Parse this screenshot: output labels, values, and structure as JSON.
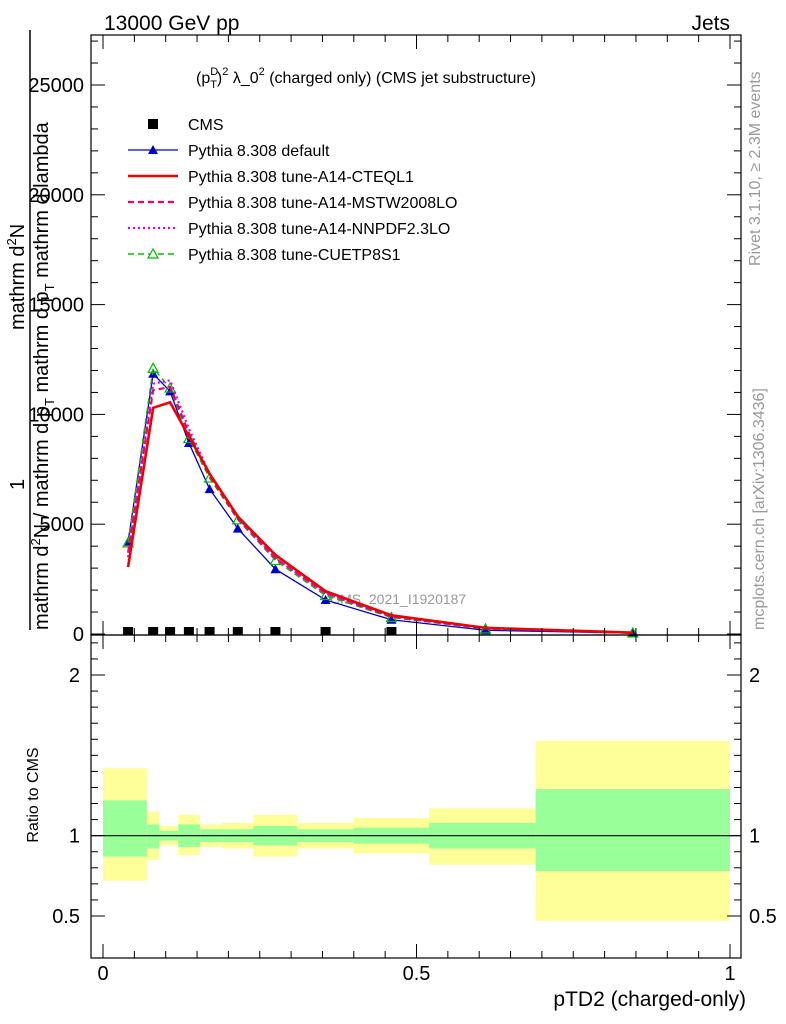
{
  "header": {
    "left": "13000 GeV pp",
    "right": "Jets"
  },
  "side_text": {
    "rivet": "Rivet 3.1.10, ≥ 2.3M events",
    "mcplots": "mcplots.cern.ch [arXiv:1306.3436]"
  },
  "watermark": "CMS_2021_I1920187",
  "colors": {
    "ratio_yellow": "#ffff99",
    "ratio_green": "#99ff99",
    "default": "#0000cc",
    "cteql1": "#ee0000",
    "mstw": "#ee0066",
    "nnpdf": "#dd00dd",
    "cuetp8s1": "#00bb00"
  },
  "chart_data": [
    {
      "type": "line",
      "title": "(p_T^D)^2 λ_0^2 (charged only) (CMS jet substructure)",
      "title_parts": {
        "a": "(p",
        "sup1": "D",
        "sub1": "T",
        "b": ")",
        "sup2": "2",
        "c": " λ_0",
        "sup3": "2",
        "d": " (charged only) (CMS jet substructure)"
      },
      "ylabel_parts": {
        "one": "1",
        "numerator": "mathrm d²N",
        "numerator_a": "mathrm d",
        "numerator_sup": "2",
        "numerator_b": "N",
        "denominator": "mathrm dN / mathrm d p_T mathrm d p_T mathrm d lambda",
        "den_a": "mathrm d",
        "den_b": "N / mathrm d p",
        "den_c": " mathrm d p",
        "den_d": " mathrm d lambda",
        "sub_t": "T"
      },
      "xlim": [
        0,
        1
      ],
      "ylim": [
        0,
        27000
      ],
      "ytick_labels": [
        "0",
        "5000",
        "10000",
        "15000",
        "20000",
        "25000"
      ],
      "legend_position": "top-left",
      "series": [
        {
          "name": "CMS",
          "x": [
            0.04,
            0.08,
            0.107,
            0.137,
            0.17,
            0.215,
            0.275,
            0.355,
            0.46
          ],
          "y": [
            0,
            0,
            0,
            0,
            0,
            0,
            0,
            0,
            0
          ],
          "marker": "square"
        },
        {
          "name": "Pythia 8.308 default",
          "x": [
            0.04,
            0.08,
            0.107,
            0.137,
            0.17,
            0.215,
            0.275,
            0.355,
            0.46,
            0.61,
            0.845
          ],
          "y": [
            4200,
            11850,
            11050,
            8700,
            6600,
            4800,
            2950,
            1550,
            650,
            170,
            40
          ],
          "marker": "triangle"
        },
        {
          "name": "Pythia 8.308 tune-A14-CTEQL1",
          "x": [
            0.04,
            0.08,
            0.107,
            0.137,
            0.17,
            0.215,
            0.275,
            0.355,
            0.46,
            0.61,
            0.845
          ],
          "y": [
            3050,
            10300,
            10550,
            9000,
            7300,
            5350,
            3600,
            1950,
            850,
            280,
            60
          ],
          "marker": "none"
        },
        {
          "name": "Pythia 8.308 tune-A14-MSTW2008LO",
          "x": [
            0.04,
            0.08,
            0.107,
            0.137,
            0.17,
            0.215,
            0.275,
            0.355,
            0.46,
            0.61,
            0.845
          ],
          "y": [
            3700,
            11100,
            11250,
            9150,
            7200,
            5250,
            3450,
            1850,
            800,
            260,
            55
          ],
          "marker": "none"
        },
        {
          "name": "Pythia 8.308 tune-A14-NNPDF2.3LO",
          "x": [
            0.04,
            0.08,
            0.107,
            0.137,
            0.17,
            0.215,
            0.275,
            0.355,
            0.46,
            0.61,
            0.845
          ],
          "y": [
            3500,
            11400,
            11550,
            9350,
            7300,
            5300,
            3450,
            1850,
            800,
            250,
            55
          ],
          "marker": "none"
        },
        {
          "name": "Pythia 8.308 tune-CUETP8S1",
          "x": [
            0.04,
            0.08,
            0.107,
            0.137,
            0.17,
            0.215,
            0.275,
            0.355,
            0.46,
            0.61,
            0.845
          ],
          "y": [
            4150,
            12100,
            11200,
            8900,
            7100,
            5200,
            3350,
            1750,
            750,
            230,
            50
          ],
          "marker": "open-triangle"
        }
      ]
    },
    {
      "type": "area",
      "xlabel": "pTD2 (charged-only)",
      "ylabel": "Ratio to CMS",
      "xlim": [
        0,
        1
      ],
      "ylim": [
        0.4,
        2.3
      ],
      "xtick_labels": [
        "0",
        "0.5",
        "1"
      ],
      "ytick_labels": [
        "0.5",
        "1",
        "2"
      ],
      "ratio_reference": 1,
      "bands": [
        {
          "x0": 0.0,
          "x1": 0.07,
          "outer": [
            0.72,
            1.42
          ],
          "inner": [
            0.87,
            1.22
          ]
        },
        {
          "x0": 0.07,
          "x1": 0.09,
          "outer": [
            0.85,
            1.15
          ],
          "inner": [
            0.92,
            1.07
          ]
        },
        {
          "x0": 0.09,
          "x1": 0.12,
          "outer": [
            0.94,
            1.06
          ],
          "inner": [
            0.97,
            1.03
          ]
        },
        {
          "x0": 0.12,
          "x1": 0.155,
          "outer": [
            0.88,
            1.13
          ],
          "inner": [
            0.93,
            1.07
          ]
        },
        {
          "x0": 0.155,
          "x1": 0.19,
          "outer": [
            0.93,
            1.07
          ],
          "inner": [
            0.96,
            1.04
          ]
        },
        {
          "x0": 0.19,
          "x1": 0.24,
          "outer": [
            0.92,
            1.08
          ],
          "inner": [
            0.96,
            1.04
          ]
        },
        {
          "x0": 0.24,
          "x1": 0.31,
          "outer": [
            0.87,
            1.13
          ],
          "inner": [
            0.94,
            1.06
          ]
        },
        {
          "x0": 0.31,
          "x1": 0.4,
          "outer": [
            0.92,
            1.08
          ],
          "inner": [
            0.96,
            1.04
          ]
        },
        {
          "x0": 0.4,
          "x1": 0.52,
          "outer": [
            0.89,
            1.11
          ],
          "inner": [
            0.95,
            1.05
          ]
        },
        {
          "x0": 0.52,
          "x1": 0.69,
          "outer": [
            0.82,
            1.17
          ],
          "inner": [
            0.92,
            1.08
          ]
        },
        {
          "x0": 0.69,
          "x1": 1.0,
          "outer": [
            0.47,
            1.59
          ],
          "inner": [
            0.78,
            1.29
          ]
        }
      ]
    }
  ]
}
